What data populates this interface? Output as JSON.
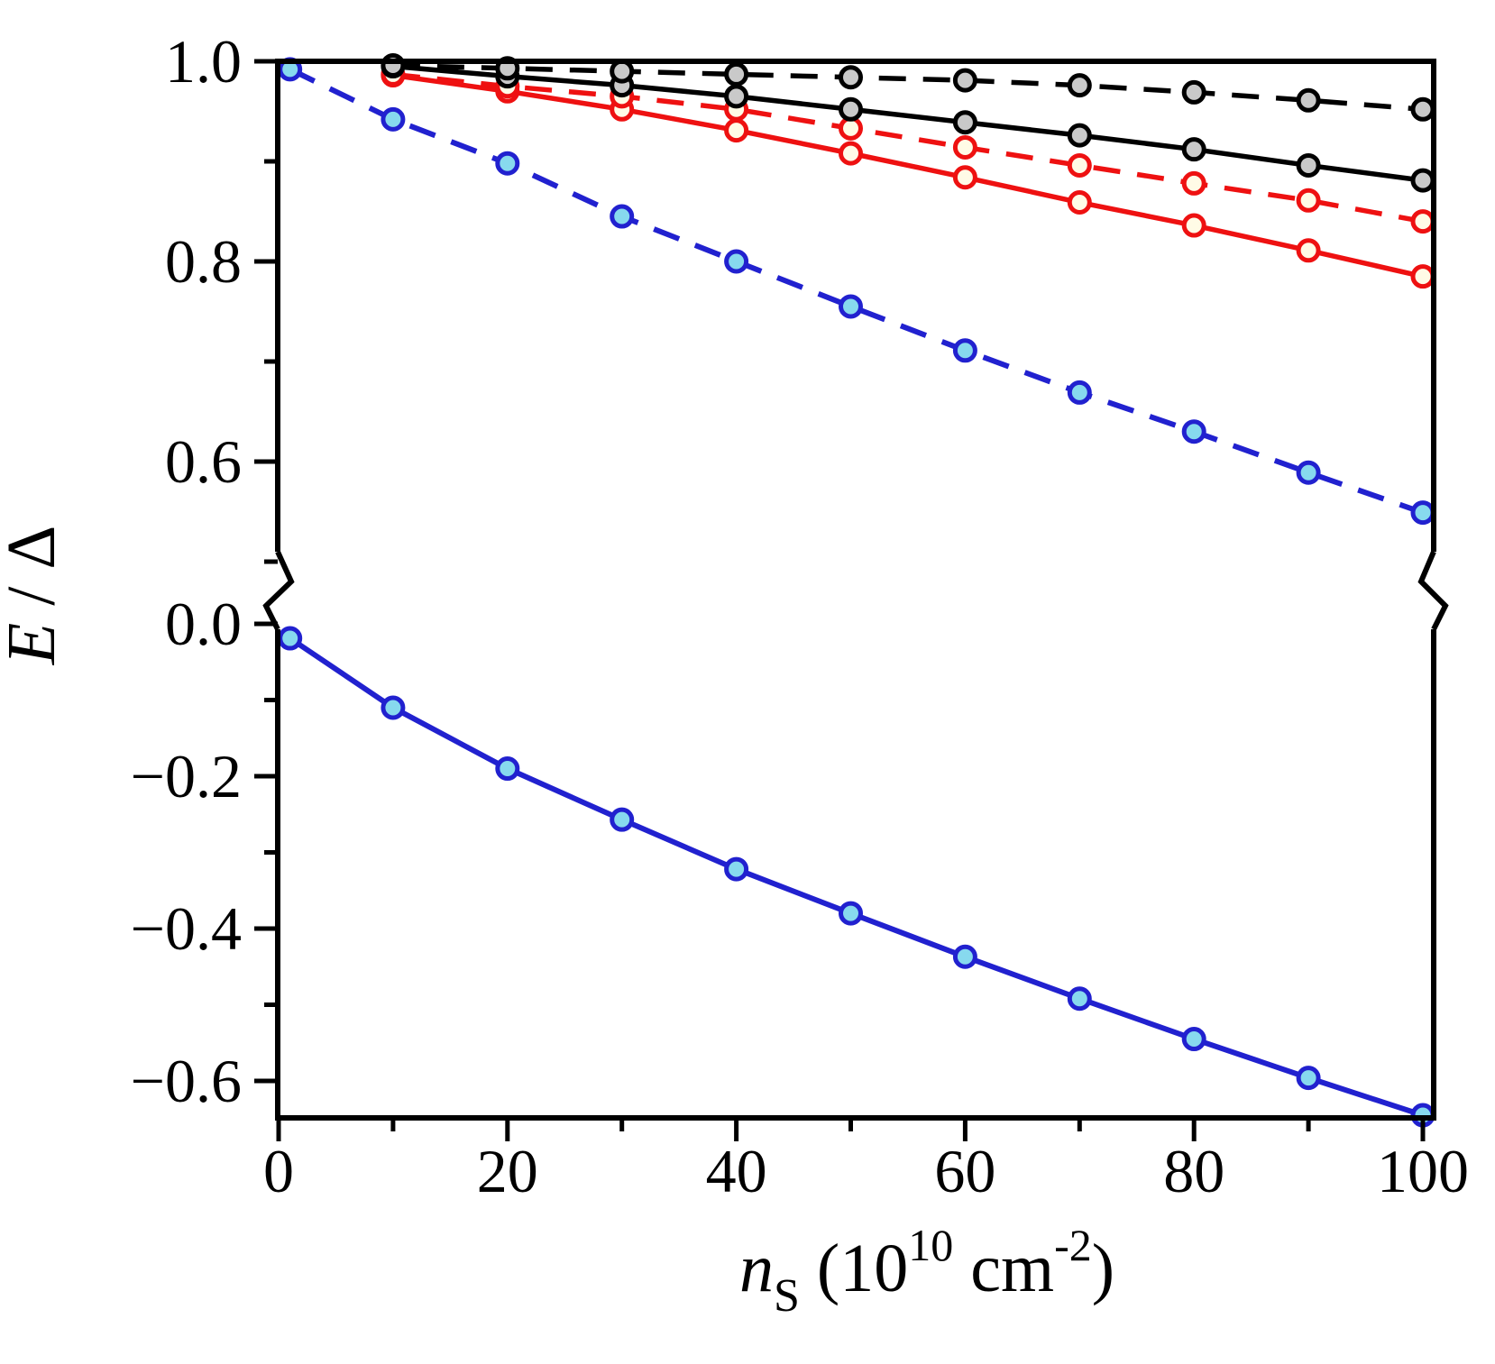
{
  "figure": {
    "background": "#ffffff"
  },
  "ylabel": {
    "text": "E / Δ",
    "var": "E",
    "sep": " / ",
    "delta": "Δ"
  },
  "xlabel": {
    "var": "n",
    "sub": "S",
    "open": " (10",
    "exp": "10",
    "unit": " cm",
    "exp2": "-2",
    "close": ")"
  },
  "x_axis": {
    "min": 0,
    "max": 100,
    "major": [
      {
        "v": 0,
        "label": "0"
      },
      {
        "v": 20,
        "label": "20"
      },
      {
        "v": 40,
        "label": "40"
      },
      {
        "v": 60,
        "label": "60"
      },
      {
        "v": 80,
        "label": "80"
      },
      {
        "v": 100,
        "label": "100"
      }
    ],
    "minor": [
      10,
      30,
      50,
      70,
      90
    ]
  },
  "y_axis_upper": {
    "min": 0.5,
    "max": 1.0,
    "major": [
      {
        "v": 1.0,
        "label": "1.0"
      },
      {
        "v": 0.8,
        "label": "0.8"
      },
      {
        "v": 0.6,
        "label": "0.6"
      }
    ],
    "minor": [
      0.9,
      0.7,
      0.5
    ]
  },
  "y_axis_lower": {
    "min": -0.65,
    "max": 0.0,
    "major": [
      {
        "v": 0.0,
        "label": "0.0"
      },
      {
        "v": -0.2,
        "label": "−0.2"
      },
      {
        "v": -0.4,
        "label": "−0.4"
      },
      {
        "v": -0.6,
        "label": "−0.6"
      }
    ],
    "minor": [
      -0.1,
      -0.3,
      -0.5
    ]
  },
  "axis_break": {
    "present": true,
    "between_values": [
      0.05,
      0.5
    ]
  },
  "chart_data": {
    "type": "line",
    "title": "",
    "xlabel": "n_S (10^10 cm^-2)",
    "ylabel": "E / Delta",
    "x_range": [
      0,
      100
    ],
    "y_axis_broken": true,
    "y_upper_range": [
      0.5,
      1.0
    ],
    "y_lower_range": [
      -0.65,
      0.0
    ],
    "grid": false,
    "legend": "none",
    "series": [
      {
        "name": "blue-solid",
        "color": "#2121cf",
        "line": "solid",
        "width": 6,
        "marker_fill": "#87d9ee",
        "x": [
          1,
          10,
          20,
          30,
          40,
          50,
          60,
          70,
          80,
          90,
          100
        ],
        "y": [
          -0.019,
          -0.11,
          -0.19,
          -0.257,
          -0.322,
          -0.38,
          -0.437,
          -0.492,
          -0.545,
          -0.596,
          -0.645
        ]
      },
      {
        "name": "blue-dashed",
        "color": "#2121cf",
        "line": "dashed",
        "width": 6,
        "marker_fill": "#87d9ee",
        "x": [
          1,
          10,
          20,
          30,
          40,
          50,
          60,
          70,
          80,
          90,
          100
        ],
        "y": [
          0.992,
          0.942,
          0.898,
          0.845,
          0.8,
          0.755,
          0.711,
          0.669,
          0.63,
          0.589,
          0.549
        ]
      },
      {
        "name": "red-solid",
        "color": "#ee1111",
        "line": "solid",
        "width": 5.5,
        "marker_fill": "#fffbe6",
        "x": [
          10,
          20,
          30,
          40,
          50,
          60,
          70,
          80,
          90,
          100
        ],
        "y": [
          0.986,
          0.97,
          0.952,
          0.931,
          0.908,
          0.884,
          0.859,
          0.836,
          0.811,
          0.785
        ]
      },
      {
        "name": "red-dashed",
        "color": "#ee1111",
        "line": "dashed",
        "width": 5.5,
        "marker_fill": "#fffbe6",
        "x": [
          10,
          20,
          30,
          40,
          50,
          60,
          70,
          80,
          90,
          100
        ],
        "y": [
          0.987,
          0.975,
          0.965,
          0.952,
          0.933,
          0.914,
          0.896,
          0.878,
          0.861,
          0.84
        ]
      },
      {
        "name": "black-solid",
        "color": "#000000",
        "line": "solid",
        "width": 5.5,
        "marker_fill": "#c9c9c9",
        "x": [
          10,
          20,
          30,
          40,
          50,
          60,
          70,
          80,
          90,
          100
        ],
        "y": [
          0.995,
          0.985,
          0.976,
          0.965,
          0.952,
          0.939,
          0.926,
          0.912,
          0.896,
          0.881
        ]
      },
      {
        "name": "black-dashed",
        "color": "#000000",
        "line": "dashed",
        "width": 5.5,
        "marker_fill": "#c9c9c9",
        "x": [
          10,
          20,
          30,
          40,
          50,
          60,
          70,
          80,
          90,
          100
        ],
        "y": [
          0.996,
          0.993,
          0.99,
          0.987,
          0.984,
          0.981,
          0.976,
          0.969,
          0.961,
          0.952
        ]
      }
    ]
  }
}
